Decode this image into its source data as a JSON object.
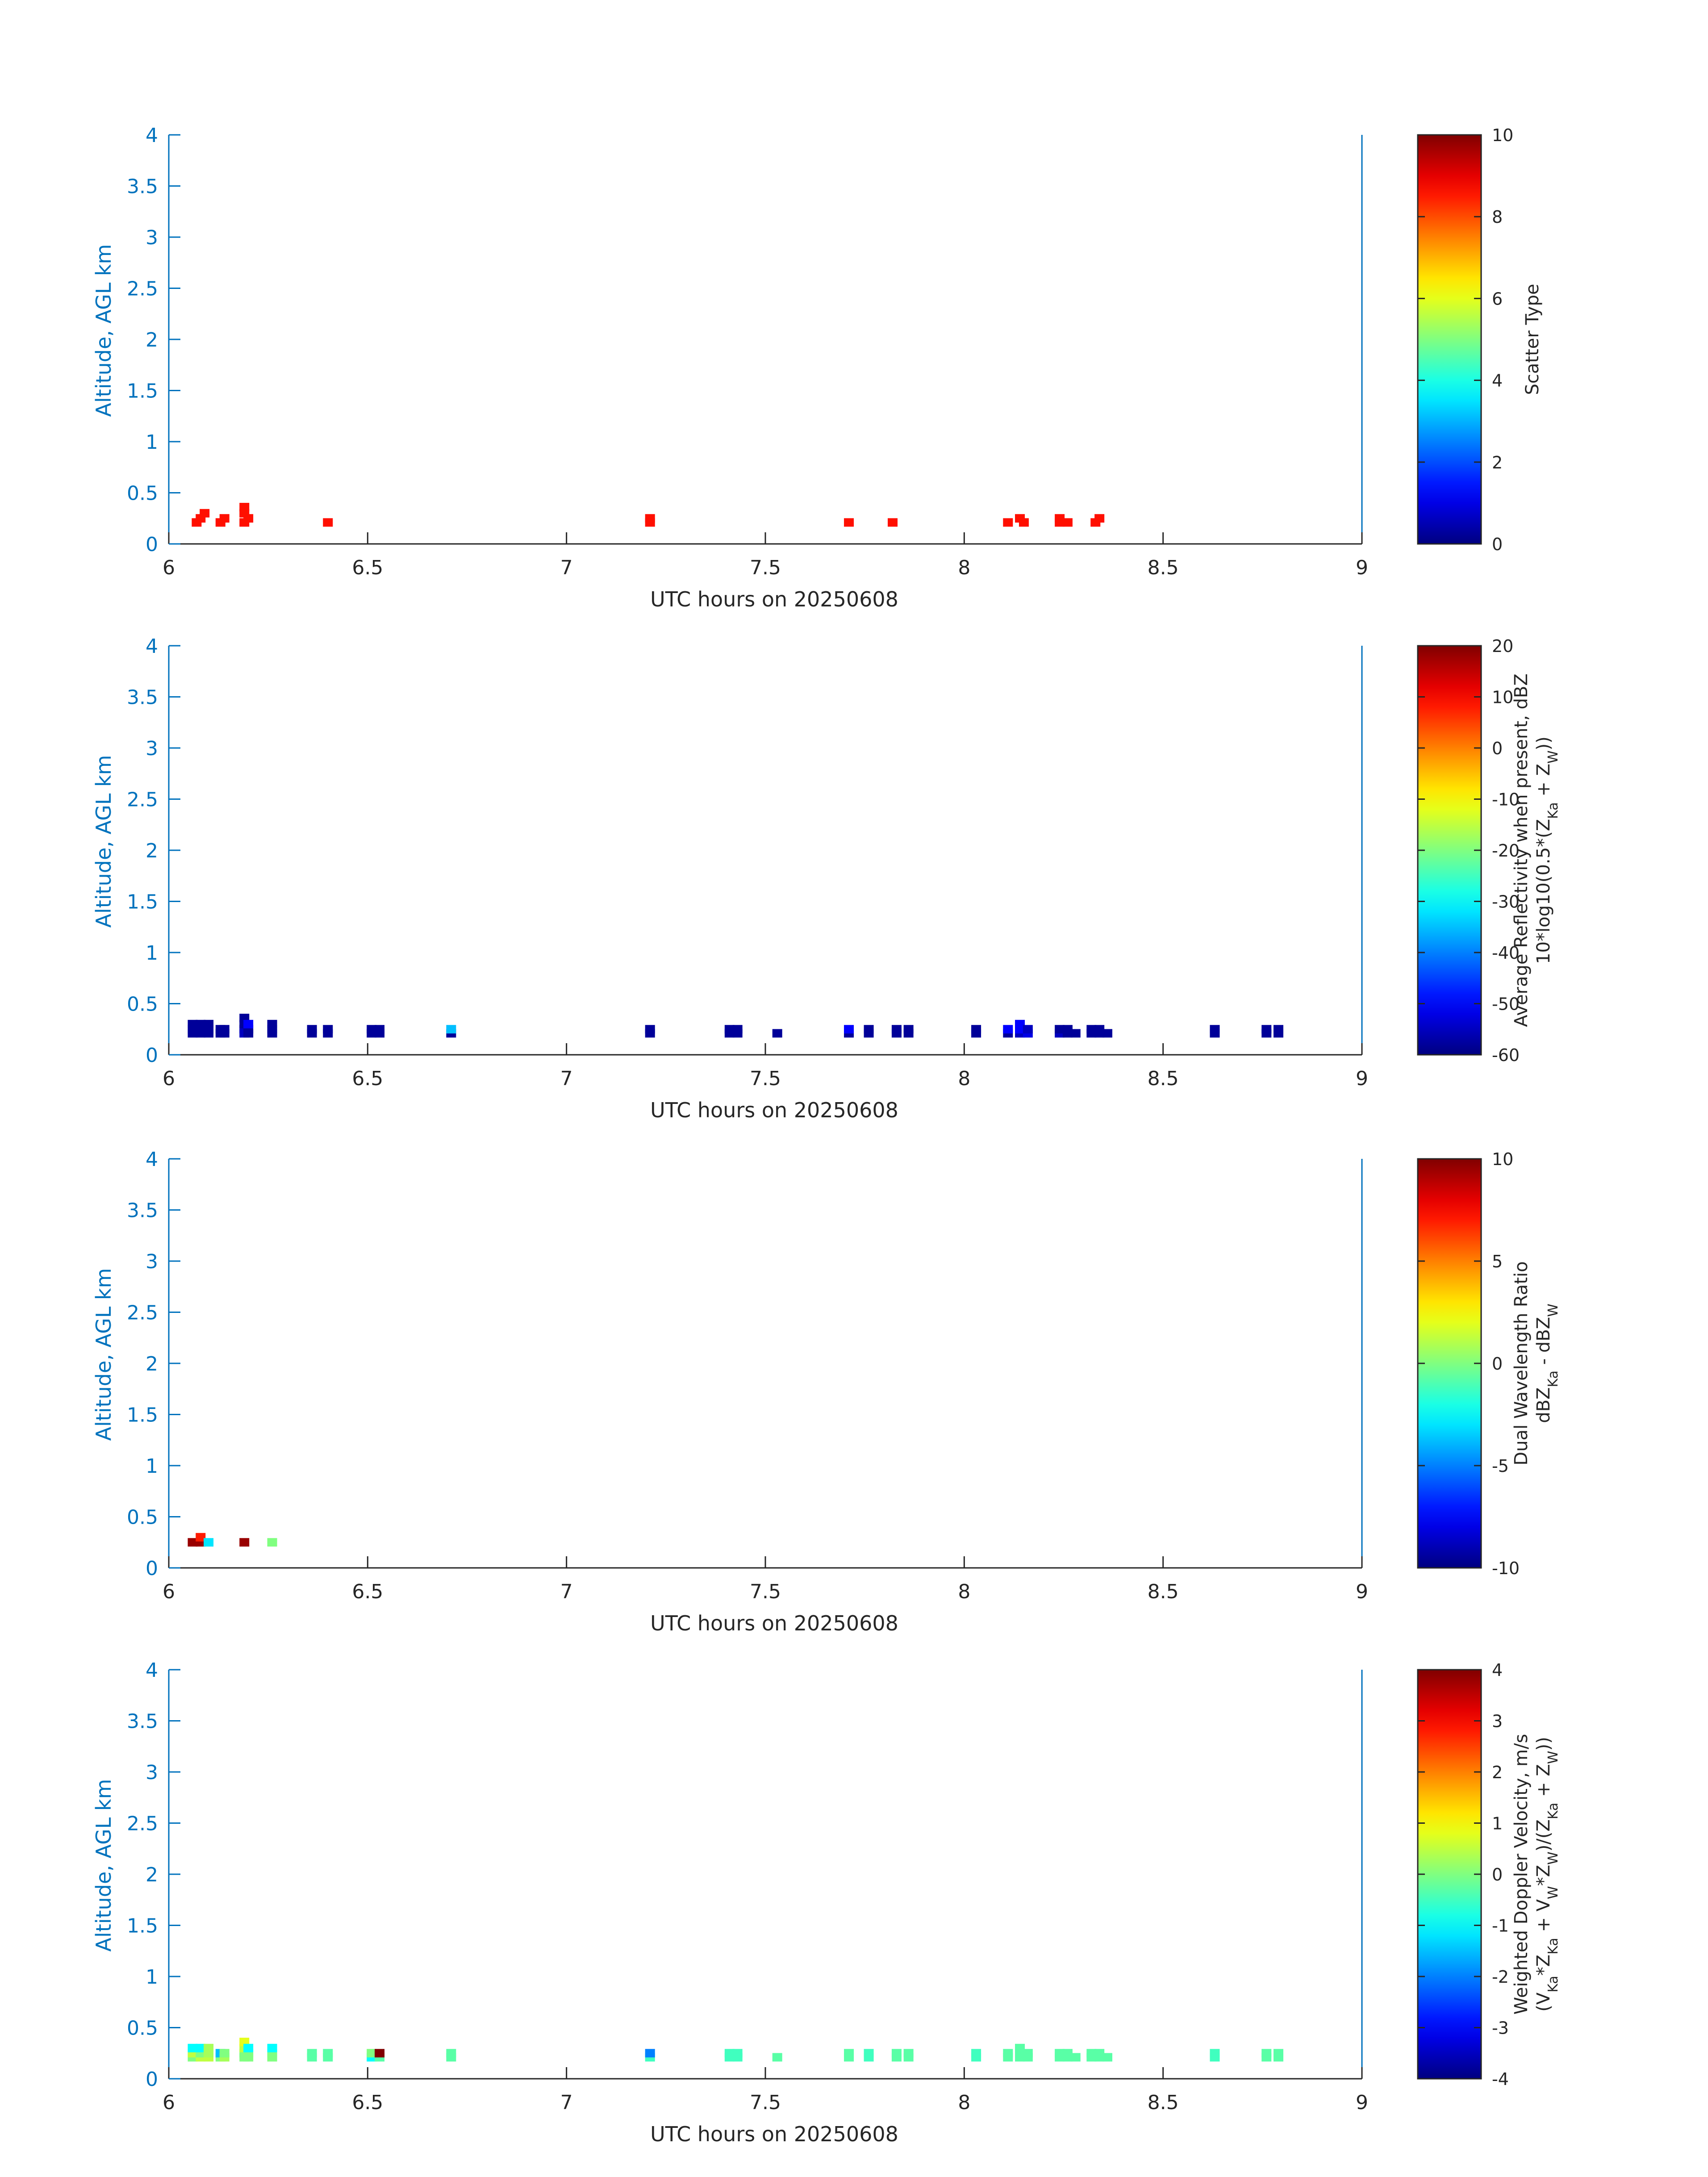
{
  "figure": {
    "background": "#ffffff",
    "axis_color": "#0072BD",
    "text_color": "#262626"
  },
  "chart_data": [
    {
      "type": "heatmap",
      "xlabel": "UTC hours on 20250608",
      "ylabel": "Altitude, AGL km",
      "xlim": [
        6,
        9
      ],
      "ylim": [
        0,
        4
      ],
      "xticks": [
        "6",
        "6.5",
        "7",
        "7.5",
        "8",
        "8.5",
        "9"
      ],
      "yticks": [
        "0",
        "0.5",
        "1",
        "1.5",
        "2",
        "2.5",
        "3",
        "3.5",
        "4"
      ],
      "colorbar": {
        "label_lines": [
          "Scatter Type"
        ],
        "range": [
          0,
          10
        ],
        "ticks": [
          "0",
          "2",
          "4",
          "6",
          "8",
          "10"
        ],
        "colormap": "jet"
      },
      "cells": [
        {
          "x": 6.07,
          "y": 0.21,
          "value": 8.6
        },
        {
          "x": 6.08,
          "y": 0.25,
          "value": 8.6
        },
        {
          "x": 6.09,
          "y": 0.3,
          "value": 8.6
        },
        {
          "x": 6.13,
          "y": 0.21,
          "value": 8.6
        },
        {
          "x": 6.14,
          "y": 0.25,
          "value": 8.6
        },
        {
          "x": 6.19,
          "y": 0.21,
          "value": 8.6
        },
        {
          "x": 6.19,
          "y": 0.3,
          "value": 8.6
        },
        {
          "x": 6.19,
          "y": 0.36,
          "value": 8.6
        },
        {
          "x": 6.2,
          "y": 0.25,
          "value": 8.6
        },
        {
          "x": 6.4,
          "y": 0.21,
          "value": 8.6
        },
        {
          "x": 7.21,
          "y": 0.21,
          "value": 8.6
        },
        {
          "x": 7.21,
          "y": 0.25,
          "value": 8.6
        },
        {
          "x": 7.71,
          "y": 0.21,
          "value": 8.6
        },
        {
          "x": 7.82,
          "y": 0.21,
          "value": 8.6
        },
        {
          "x": 8.11,
          "y": 0.21,
          "value": 8.6
        },
        {
          "x": 8.14,
          "y": 0.25,
          "value": 8.6
        },
        {
          "x": 8.15,
          "y": 0.21,
          "value": 8.6
        },
        {
          "x": 8.24,
          "y": 0.21,
          "value": 8.6
        },
        {
          "x": 8.24,
          "y": 0.25,
          "value": 8.6
        },
        {
          "x": 8.26,
          "y": 0.21,
          "value": 8.6
        },
        {
          "x": 8.33,
          "y": 0.21,
          "value": 8.6
        },
        {
          "x": 8.34,
          "y": 0.25,
          "value": 8.6
        }
      ]
    },
    {
      "type": "heatmap",
      "xlabel": "UTC hours on 20250608",
      "ylabel": "Altitude, AGL km",
      "xlim": [
        6,
        9
      ],
      "ylim": [
        0,
        4
      ],
      "xticks": [
        "6",
        "6.5",
        "7",
        "7.5",
        "8",
        "8.5",
        "9"
      ],
      "yticks": [
        "0",
        "0.5",
        "1",
        "1.5",
        "2",
        "2.5",
        "3",
        "3.5",
        "4"
      ],
      "colorbar": {
        "label_lines": [
          "Average Reflectivity when present, dBZ",
          "10*log10(0.5*(Z_Ka + Z_W))"
        ],
        "range": [
          -60,
          20
        ],
        "ticks": [
          "-60",
          "-50",
          "-40",
          "-30",
          "-20",
          "-10",
          "0",
          "10",
          "20"
        ],
        "colormap": "jet"
      },
      "cells": [
        {
          "x": 6.06,
          "y": 0.21,
          "value": -58
        },
        {
          "x": 6.06,
          "y": 0.25,
          "value": -58
        },
        {
          "x": 6.06,
          "y": 0.3,
          "value": -58
        },
        {
          "x": 6.08,
          "y": 0.21,
          "value": -58
        },
        {
          "x": 6.08,
          "y": 0.25,
          "value": -58
        },
        {
          "x": 6.08,
          "y": 0.3,
          "value": -58
        },
        {
          "x": 6.1,
          "y": 0.21,
          "value": -58
        },
        {
          "x": 6.1,
          "y": 0.25,
          "value": -58
        },
        {
          "x": 6.1,
          "y": 0.3,
          "value": -58
        },
        {
          "x": 6.13,
          "y": 0.21,
          "value": -58
        },
        {
          "x": 6.13,
          "y": 0.25,
          "value": -58
        },
        {
          "x": 6.14,
          "y": 0.21,
          "value": -58
        },
        {
          "x": 6.14,
          "y": 0.25,
          "value": -58
        },
        {
          "x": 6.19,
          "y": 0.21,
          "value": -55
        },
        {
          "x": 6.19,
          "y": 0.25,
          "value": -55
        },
        {
          "x": 6.19,
          "y": 0.3,
          "value": -58
        },
        {
          "x": 6.19,
          "y": 0.36,
          "value": -58
        },
        {
          "x": 6.2,
          "y": 0.21,
          "value": -58
        },
        {
          "x": 6.2,
          "y": 0.25,
          "value": -58
        },
        {
          "x": 6.2,
          "y": 0.3,
          "value": -50
        },
        {
          "x": 6.26,
          "y": 0.21,
          "value": -58
        },
        {
          "x": 6.26,
          "y": 0.25,
          "value": -58
        },
        {
          "x": 6.26,
          "y": 0.3,
          "value": -58
        },
        {
          "x": 6.36,
          "y": 0.21,
          "value": -58
        },
        {
          "x": 6.36,
          "y": 0.25,
          "value": -58
        },
        {
          "x": 6.4,
          "y": 0.21,
          "value": -58
        },
        {
          "x": 6.4,
          "y": 0.25,
          "value": -58
        },
        {
          "x": 6.51,
          "y": 0.21,
          "value": -58
        },
        {
          "x": 6.51,
          "y": 0.25,
          "value": -58
        },
        {
          "x": 6.53,
          "y": 0.21,
          "value": -58
        },
        {
          "x": 6.53,
          "y": 0.25,
          "value": -58
        },
        {
          "x": 6.71,
          "y": 0.21,
          "value": -58
        },
        {
          "x": 6.71,
          "y": 0.25,
          "value": -35
        },
        {
          "x": 7.21,
          "y": 0.21,
          "value": -58
        },
        {
          "x": 7.21,
          "y": 0.25,
          "value": -58
        },
        {
          "x": 7.41,
          "y": 0.21,
          "value": -58
        },
        {
          "x": 7.41,
          "y": 0.25,
          "value": -58
        },
        {
          "x": 7.43,
          "y": 0.21,
          "value": -58
        },
        {
          "x": 7.43,
          "y": 0.25,
          "value": -58
        },
        {
          "x": 7.53,
          "y": 0.21,
          "value": -58
        },
        {
          "x": 7.71,
          "y": 0.21,
          "value": -58
        },
        {
          "x": 7.71,
          "y": 0.25,
          "value": -50
        },
        {
          "x": 7.76,
          "y": 0.21,
          "value": -58
        },
        {
          "x": 7.76,
          "y": 0.25,
          "value": -58
        },
        {
          "x": 7.83,
          "y": 0.21,
          "value": -58
        },
        {
          "x": 7.83,
          "y": 0.25,
          "value": -58
        },
        {
          "x": 7.86,
          "y": 0.21,
          "value": -58
        },
        {
          "x": 7.86,
          "y": 0.25,
          "value": -58
        },
        {
          "x": 8.03,
          "y": 0.21,
          "value": -58
        },
        {
          "x": 8.03,
          "y": 0.25,
          "value": -58
        },
        {
          "x": 8.11,
          "y": 0.21,
          "value": -58
        },
        {
          "x": 8.11,
          "y": 0.25,
          "value": -50
        },
        {
          "x": 8.14,
          "y": 0.21,
          "value": -55
        },
        {
          "x": 8.14,
          "y": 0.25,
          "value": -50
        },
        {
          "x": 8.14,
          "y": 0.3,
          "value": -50
        },
        {
          "x": 8.16,
          "y": 0.21,
          "value": -52
        },
        {
          "x": 8.16,
          "y": 0.25,
          "value": -55
        },
        {
          "x": 8.24,
          "y": 0.21,
          "value": -55
        },
        {
          "x": 8.24,
          "y": 0.25,
          "value": -58
        },
        {
          "x": 8.26,
          "y": 0.21,
          "value": -58
        },
        {
          "x": 8.26,
          "y": 0.25,
          "value": -58
        },
        {
          "x": 8.28,
          "y": 0.21,
          "value": -58
        },
        {
          "x": 8.32,
          "y": 0.21,
          "value": -58
        },
        {
          "x": 8.32,
          "y": 0.25,
          "value": -58
        },
        {
          "x": 8.34,
          "y": 0.21,
          "value": -58
        },
        {
          "x": 8.34,
          "y": 0.25,
          "value": -58
        },
        {
          "x": 8.36,
          "y": 0.21,
          "value": -58
        },
        {
          "x": 8.63,
          "y": 0.21,
          "value": -58
        },
        {
          "x": 8.63,
          "y": 0.25,
          "value": -58
        },
        {
          "x": 8.76,
          "y": 0.21,
          "value": -58
        },
        {
          "x": 8.76,
          "y": 0.25,
          "value": -58
        },
        {
          "x": 8.79,
          "y": 0.21,
          "value": -58
        },
        {
          "x": 8.79,
          "y": 0.25,
          "value": -58
        }
      ]
    },
    {
      "type": "heatmap",
      "xlabel": "UTC hours on 20250608",
      "ylabel": "Altitude, AGL km",
      "xlim": [
        6,
        9
      ],
      "ylim": [
        0,
        4
      ],
      "xticks": [
        "6",
        "6.5",
        "7",
        "7.5",
        "8",
        "8.5",
        "9"
      ],
      "yticks": [
        "0",
        "0.5",
        "1",
        "1.5",
        "2",
        "2.5",
        "3",
        "3.5",
        "4"
      ],
      "colorbar": {
        "label_lines": [
          "Dual Wavelength Ratio",
          "dBZ_Ka - dBZ_W"
        ],
        "range": [
          -10,
          10
        ],
        "ticks": [
          "-10",
          "-5",
          "0",
          "5",
          "10"
        ],
        "colormap": "jet"
      },
      "cells": [
        {
          "x": 6.06,
          "y": 0.25,
          "value": 9.5
        },
        {
          "x": 6.08,
          "y": 0.25,
          "value": 9.5
        },
        {
          "x": 6.08,
          "y": 0.3,
          "value": 7
        },
        {
          "x": 6.1,
          "y": 0.25,
          "value": -3
        },
        {
          "x": 6.19,
          "y": 0.25,
          "value": 9.5
        },
        {
          "x": 6.26,
          "y": 0.25,
          "value": 0
        }
      ]
    },
    {
      "type": "heatmap",
      "xlabel": "UTC hours on 20250608",
      "ylabel": "Altitude, AGL km",
      "xlim": [
        6,
        9
      ],
      "ylim": [
        0,
        4
      ],
      "xticks": [
        "6",
        "6.5",
        "7",
        "7.5",
        "8",
        "8.5",
        "9"
      ],
      "yticks": [
        "0",
        "0.5",
        "1",
        "1.5",
        "2",
        "2.5",
        "3",
        "3.5",
        "4"
      ],
      "colorbar": {
        "label_lines": [
          "Weighted Doppler Velocity, m/s",
          "(V_Ka*Z_Ka + V_W*Z_W)/(Z_Ka + Z_W))"
        ],
        "range": [
          -4,
          4
        ],
        "ticks": [
          "-4",
          "-3",
          "-2",
          "-1",
          "0",
          "1",
          "2",
          "3",
          "4"
        ],
        "colormap": "jet"
      },
      "cells": [
        {
          "x": 6.06,
          "y": 0.21,
          "value": 0
        },
        {
          "x": 6.06,
          "y": 0.25,
          "value": 0.5
        },
        {
          "x": 6.06,
          "y": 0.3,
          "value": -1
        },
        {
          "x": 6.08,
          "y": 0.21,
          "value": 0.5
        },
        {
          "x": 6.08,
          "y": 0.25,
          "value": 0
        },
        {
          "x": 6.08,
          "y": 0.3,
          "value": -1
        },
        {
          "x": 6.1,
          "y": 0.21,
          "value": 0.5
        },
        {
          "x": 6.1,
          "y": 0.25,
          "value": 0.3
        },
        {
          "x": 6.1,
          "y": 0.3,
          "value": 0.3
        },
        {
          "x": 6.13,
          "y": 0.21,
          "value": 0
        },
        {
          "x": 6.13,
          "y": 0.25,
          "value": -1.5
        },
        {
          "x": 6.14,
          "y": 0.21,
          "value": 0.3
        },
        {
          "x": 6.14,
          "y": 0.25,
          "value": 0
        },
        {
          "x": 6.19,
          "y": 0.21,
          "value": 0
        },
        {
          "x": 6.19,
          "y": 0.25,
          "value": 0
        },
        {
          "x": 6.19,
          "y": 0.3,
          "value": 0.5
        },
        {
          "x": 6.19,
          "y": 0.36,
          "value": 0.8
        },
        {
          "x": 6.2,
          "y": 0.21,
          "value": 0
        },
        {
          "x": 6.2,
          "y": 0.25,
          "value": 0
        },
        {
          "x": 6.2,
          "y": 0.3,
          "value": -1
        },
        {
          "x": 6.26,
          "y": 0.21,
          "value": 0
        },
        {
          "x": 6.26,
          "y": 0.25,
          "value": 0
        },
        {
          "x": 6.26,
          "y": 0.3,
          "value": -1
        },
        {
          "x": 6.36,
          "y": 0.21,
          "value": -0.3
        },
        {
          "x": 6.36,
          "y": 0.25,
          "value": -0.3
        },
        {
          "x": 6.4,
          "y": 0.21,
          "value": -0.3
        },
        {
          "x": 6.4,
          "y": 0.25,
          "value": -0.3
        },
        {
          "x": 6.51,
          "y": 0.21,
          "value": -1
        },
        {
          "x": 6.51,
          "y": 0.25,
          "value": 0
        },
        {
          "x": 6.53,
          "y": 0.21,
          "value": -0.3
        },
        {
          "x": 6.53,
          "y": 0.25,
          "value": 4
        },
        {
          "x": 6.71,
          "y": 0.21,
          "value": -0.3
        },
        {
          "x": 6.71,
          "y": 0.25,
          "value": -0.3
        },
        {
          "x": 7.21,
          "y": 0.21,
          "value": -0.5
        },
        {
          "x": 7.21,
          "y": 0.25,
          "value": -2
        },
        {
          "x": 7.41,
          "y": 0.21,
          "value": -0.5
        },
        {
          "x": 7.41,
          "y": 0.25,
          "value": -0.5
        },
        {
          "x": 7.43,
          "y": 0.21,
          "value": -0.5
        },
        {
          "x": 7.43,
          "y": 0.25,
          "value": -0.5
        },
        {
          "x": 7.53,
          "y": 0.21,
          "value": -0.3
        },
        {
          "x": 7.71,
          "y": 0.21,
          "value": -0.3
        },
        {
          "x": 7.71,
          "y": 0.25,
          "value": -0.3
        },
        {
          "x": 7.76,
          "y": 0.21,
          "value": -0.5
        },
        {
          "x": 7.76,
          "y": 0.25,
          "value": -0.5
        },
        {
          "x": 7.83,
          "y": 0.21,
          "value": -0.3
        },
        {
          "x": 7.83,
          "y": 0.25,
          "value": -0.3
        },
        {
          "x": 7.86,
          "y": 0.21,
          "value": -0.3
        },
        {
          "x": 7.86,
          "y": 0.25,
          "value": -0.3
        },
        {
          "x": 8.03,
          "y": 0.21,
          "value": -0.5
        },
        {
          "x": 8.03,
          "y": 0.25,
          "value": -0.5
        },
        {
          "x": 8.11,
          "y": 0.21,
          "value": -0.3
        },
        {
          "x": 8.11,
          "y": 0.25,
          "value": -0.3
        },
        {
          "x": 8.14,
          "y": 0.21,
          "value": -0.3
        },
        {
          "x": 8.14,
          "y": 0.25,
          "value": -0.3
        },
        {
          "x": 8.14,
          "y": 0.3,
          "value": -0.3
        },
        {
          "x": 8.16,
          "y": 0.21,
          "value": -0.3
        },
        {
          "x": 8.16,
          "y": 0.25,
          "value": -0.3
        },
        {
          "x": 8.24,
          "y": 0.21,
          "value": -0.3
        },
        {
          "x": 8.24,
          "y": 0.25,
          "value": -0.3
        },
        {
          "x": 8.26,
          "y": 0.21,
          "value": -0.3
        },
        {
          "x": 8.26,
          "y": 0.25,
          "value": -0.3
        },
        {
          "x": 8.28,
          "y": 0.21,
          "value": -0.3
        },
        {
          "x": 8.32,
          "y": 0.21,
          "value": -0.3
        },
        {
          "x": 8.32,
          "y": 0.25,
          "value": -0.3
        },
        {
          "x": 8.34,
          "y": 0.21,
          "value": -0.3
        },
        {
          "x": 8.34,
          "y": 0.25,
          "value": -0.3
        },
        {
          "x": 8.36,
          "y": 0.21,
          "value": -0.3
        },
        {
          "x": 8.63,
          "y": 0.21,
          "value": -0.5
        },
        {
          "x": 8.63,
          "y": 0.25,
          "value": -0.5
        },
        {
          "x": 8.76,
          "y": 0.21,
          "value": -0.3
        },
        {
          "x": 8.76,
          "y": 0.25,
          "value": -0.3
        },
        {
          "x": 8.79,
          "y": 0.21,
          "value": -0.3
        },
        {
          "x": 8.79,
          "y": 0.25,
          "value": -0.3
        }
      ]
    }
  ]
}
